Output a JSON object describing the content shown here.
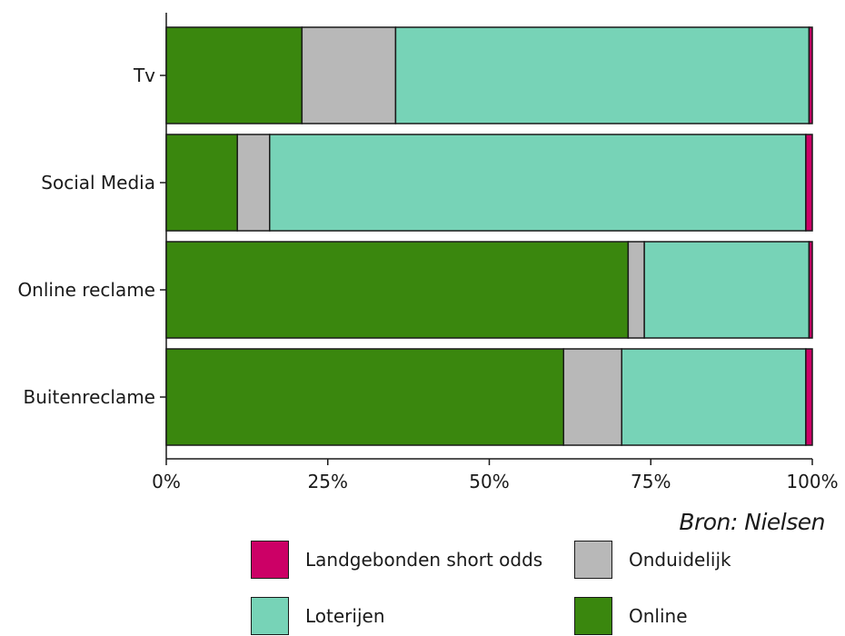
{
  "chart_data": {
    "type": "bar",
    "orientation": "horizontal",
    "stacked": "percent",
    "categories": [
      "Tv",
      "Social Media",
      "Online reclame",
      "Buitenreclame"
    ],
    "x_ticks": [
      "0%",
      "25%",
      "50%",
      "75%",
      "100%"
    ],
    "xlim": [
      0,
      100
    ],
    "series": [
      {
        "name": "Online",
        "color": "#3a870e",
        "values": [
          21,
          11,
          71.5,
          61.5
        ]
      },
      {
        "name": "Onduidelijk",
        "color": "#b8b8b8",
        "values": [
          14.5,
          5,
          2.5,
          9
        ]
      },
      {
        "name": "Loterijen",
        "color": "#77d3b7",
        "values": [
          64,
          83,
          25.5,
          28.5
        ]
      },
      {
        "name": "Landgebonden short odds",
        "color": "#cc0066",
        "values": [
          0.5,
          1,
          0.5,
          1
        ]
      }
    ],
    "legend_order": [
      "Landgebonden short odds",
      "Onduidelijk",
      "Loterijen",
      "Online"
    ],
    "legend_position": "bottom",
    "grid": false
  },
  "source_note": "Bron: Nielsen"
}
